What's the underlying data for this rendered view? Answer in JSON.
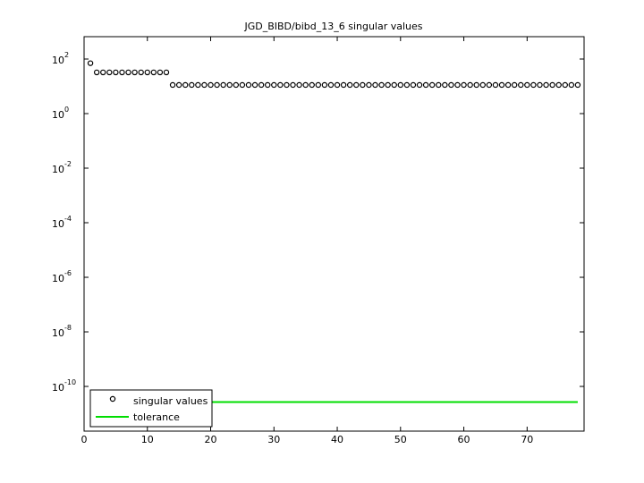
{
  "chart_data": {
    "type": "scatter",
    "title": "JGD_BIBD/bibd_13_6 singular values",
    "log_y": true,
    "xlim": [
      0,
      79
    ],
    "xticks": [
      0,
      10,
      20,
      30,
      40,
      50,
      60,
      70
    ],
    "ylim": [
      2.3e-12,
      660
    ],
    "yticks": [
      {
        "value": 1e-10,
        "label": "10",
        "exponent": "-10"
      },
      {
        "value": 1e-08,
        "label": "10",
        "exponent": "-8"
      },
      {
        "value": 1e-06,
        "label": "10",
        "exponent": "-6"
      },
      {
        "value": 0.0001,
        "label": "10",
        "exponent": "-4"
      },
      {
        "value": 0.01,
        "label": "10",
        "exponent": "-2"
      },
      {
        "value": 1,
        "label": "10",
        "exponent": "0"
      },
      {
        "value": 100,
        "label": "10",
        "exponent": "2"
      }
    ],
    "legend": "lower left",
    "series": [
      {
        "name": "singular values",
        "color": "#000000",
        "style": "markers",
        "x": [
          1,
          2,
          3,
          4,
          5,
          6,
          7,
          8,
          9,
          10,
          11,
          12,
          13,
          14,
          15,
          16,
          17,
          18,
          19,
          20,
          21,
          22,
          23,
          24,
          25,
          26,
          27,
          28,
          29,
          30,
          31,
          32,
          33,
          34,
          35,
          36,
          37,
          38,
          39,
          40,
          41,
          42,
          43,
          44,
          45,
          46,
          47,
          48,
          49,
          50,
          51,
          52,
          53,
          54,
          55,
          56,
          57,
          58,
          59,
          60,
          61,
          62,
          63,
          64,
          65,
          66,
          67,
          68,
          69,
          70,
          71,
          72,
          73,
          74,
          75,
          76,
          77,
          78
        ],
        "values": [
          70.36,
          32.4,
          32.4,
          32.4,
          32.4,
          32.4,
          32.4,
          32.4,
          32.4,
          32.4,
          32.4,
          32.4,
          32.4,
          11.22,
          11.22,
          11.22,
          11.22,
          11.22,
          11.22,
          11.22,
          11.22,
          11.22,
          11.22,
          11.22,
          11.22,
          11.22,
          11.22,
          11.22,
          11.22,
          11.22,
          11.22,
          11.22,
          11.22,
          11.22,
          11.22,
          11.22,
          11.22,
          11.22,
          11.22,
          11.22,
          11.22,
          11.22,
          11.22,
          11.22,
          11.22,
          11.22,
          11.22,
          11.22,
          11.22,
          11.22,
          11.22,
          11.22,
          11.22,
          11.22,
          11.22,
          11.22,
          11.22,
          11.22,
          11.22,
          11.22,
          11.22,
          11.22,
          11.22,
          11.22,
          11.22,
          11.22,
          11.22,
          11.22,
          11.22,
          11.22,
          11.22,
          11.22,
          11.22,
          11.22,
          11.22,
          11.22,
          11.22,
          11.22
        ]
      },
      {
        "name": "tolerance",
        "color": "#00dd00",
        "style": "line",
        "x": [
          1,
          78
        ],
        "values": [
          2.68e-11,
          2.68e-11
        ]
      }
    ]
  }
}
